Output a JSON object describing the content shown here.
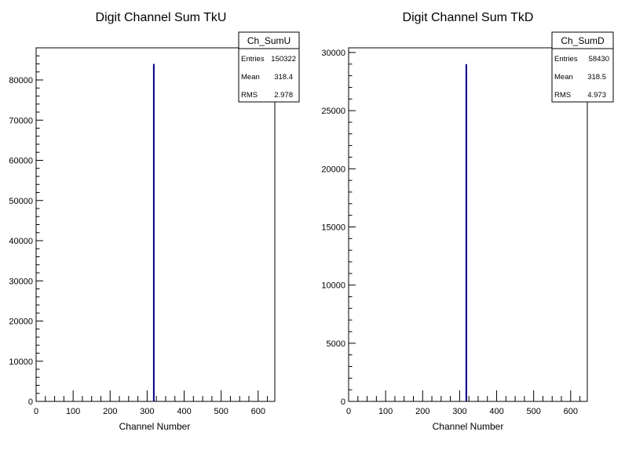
{
  "chart_data": [
    {
      "type": "bar",
      "title": "Digit Channel Sum TkU",
      "xlabel": "Channel Number",
      "ylabel": "",
      "xlim": [
        0,
        645
      ],
      "ylim": [
        0,
        88000
      ],
      "x_ticks": [
        0,
        100,
        200,
        300,
        400,
        500,
        600
      ],
      "y_ticks": [
        0,
        10000,
        20000,
        30000,
        40000,
        50000,
        60000,
        70000,
        80000
      ],
      "series": [
        {
          "name": "Ch_SumU",
          "x": [
            318
          ],
          "values": [
            84000
          ]
        }
      ],
      "bar_color": "#000080",
      "stats": {
        "name": "Ch_SumU",
        "entries": {
          "label": "Entries",
          "value": "150322"
        },
        "mean": {
          "label": "Mean",
          "value": "318.4"
        },
        "rms": {
          "label": "RMS",
          "value": "2.978"
        }
      },
      "legend_position": "top-right",
      "grid": false
    },
    {
      "type": "bar",
      "title": "Digit Channel Sum TkD",
      "xlabel": "Channel Number",
      "ylabel": "",
      "xlim": [
        0,
        645
      ],
      "ylim": [
        0,
        30400
      ],
      "x_ticks": [
        0,
        100,
        200,
        300,
        400,
        500,
        600
      ],
      "y_ticks": [
        0,
        5000,
        10000,
        15000,
        20000,
        25000,
        30000
      ],
      "series": [
        {
          "name": "Ch_SumD",
          "x": [
            318
          ],
          "values": [
            29000
          ]
        }
      ],
      "bar_color": "#000080",
      "stats": {
        "name": "Ch_SumD",
        "entries": {
          "label": "Entries",
          "value": "58430"
        },
        "mean": {
          "label": "Mean",
          "value": "318.5"
        },
        "rms": {
          "label": "RMS",
          "value": "4.973"
        }
      },
      "legend_position": "top-right",
      "grid": false
    }
  ]
}
